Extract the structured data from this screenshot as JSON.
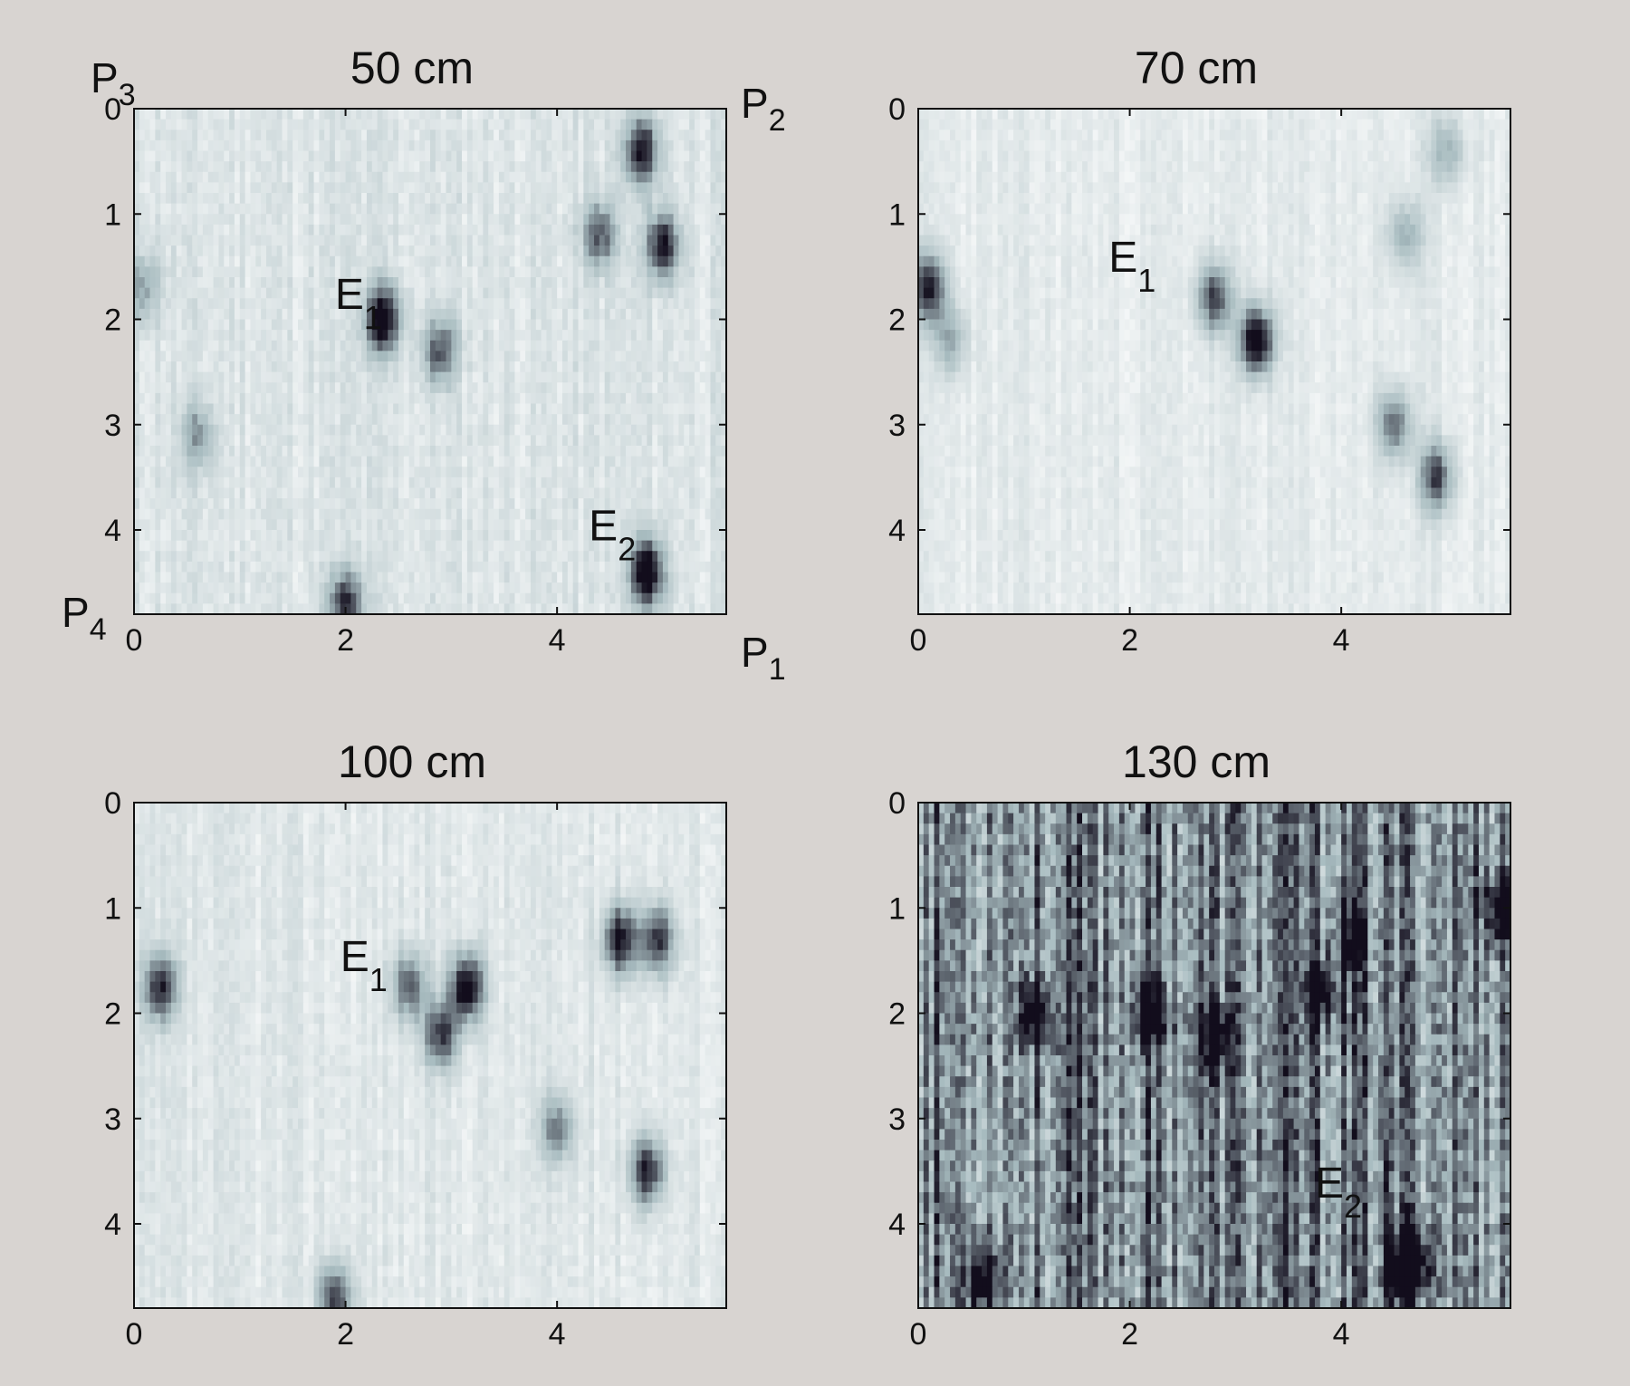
{
  "chart_data": [
    {
      "type": "heatmap",
      "title": "50 cm",
      "xlim": [
        0,
        5.6
      ],
      "ylim": [
        0,
        4.8
      ],
      "xticks": [
        "0",
        "2",
        "4"
      ],
      "yticks": [
        "0",
        "1",
        "2",
        "3",
        "4"
      ],
      "colormap": {
        "low": "#ffffff",
        "mid": "#a8bcc0",
        "high": "#120d1c"
      },
      "background": 0.14,
      "stripe_strength": 0.12,
      "seed": 11,
      "corners": [
        {
          "name": "P",
          "sub": "3",
          "position": "top-left"
        },
        {
          "name": "P",
          "sub": "2",
          "position": "top-right"
        },
        {
          "name": "P",
          "sub": "4",
          "position": "bottom-left"
        },
        {
          "name": "P",
          "sub": "1",
          "position": "bottom-right"
        }
      ],
      "anomalies": [
        {
          "x": 2.35,
          "y": 2.0,
          "intensity": 0.95
        },
        {
          "x": 2.9,
          "y": 2.3,
          "intensity": 0.6
        },
        {
          "x": 4.8,
          "y": 0.4,
          "intensity": 0.8
        },
        {
          "x": 5.0,
          "y": 1.3,
          "intensity": 0.8
        },
        {
          "x": 4.4,
          "y": 1.2,
          "intensity": 0.6
        },
        {
          "x": 4.85,
          "y": 4.4,
          "intensity": 1.0
        },
        {
          "x": 2.0,
          "y": 4.7,
          "intensity": 0.7
        },
        {
          "x": 0.6,
          "y": 3.1,
          "intensity": 0.4
        },
        {
          "x": 0.1,
          "y": 1.7,
          "intensity": 0.4
        }
      ],
      "events": [
        {
          "name": "E",
          "sub": "1",
          "x": 1.9,
          "y": 1.9
        },
        {
          "name": "E",
          "sub": "2",
          "x": 4.3,
          "y": 4.1
        }
      ]
    },
    {
      "type": "heatmap",
      "title": "70 cm",
      "xlim": [
        0,
        5.6
      ],
      "ylim": [
        0,
        4.8
      ],
      "xticks": [
        "0",
        "2",
        "4"
      ],
      "yticks": [
        "0",
        "1",
        "2",
        "3",
        "4"
      ],
      "colormap": {
        "low": "#ffffff",
        "mid": "#a8bcc0",
        "high": "#120d1c"
      },
      "background": 0.1,
      "stripe_strength": 0.1,
      "seed": 23,
      "corners": [],
      "anomalies": [
        {
          "x": 3.2,
          "y": 2.2,
          "intensity": 1.0
        },
        {
          "x": 2.8,
          "y": 1.8,
          "intensity": 0.7
        },
        {
          "x": 0.1,
          "y": 1.7,
          "intensity": 0.8
        },
        {
          "x": 0.3,
          "y": 2.2,
          "intensity": 0.4
        },
        {
          "x": 4.9,
          "y": 3.5,
          "intensity": 0.7
        },
        {
          "x": 4.5,
          "y": 3.0,
          "intensity": 0.6
        },
        {
          "x": 5.0,
          "y": 0.4,
          "intensity": 0.4
        },
        {
          "x": 4.6,
          "y": 1.2,
          "intensity": 0.4
        }
      ],
      "events": [
        {
          "name": "E",
          "sub": "1",
          "x": 1.8,
          "y": 1.55
        }
      ]
    },
    {
      "type": "heatmap",
      "title": "100 cm",
      "xlim": [
        0,
        5.6
      ],
      "ylim": [
        0,
        4.8
      ],
      "xticks": [
        "0",
        "2",
        "4"
      ],
      "yticks": [
        "0",
        "1",
        "2",
        "3",
        "4"
      ],
      "colormap": {
        "low": "#ffffff",
        "mid": "#a8bcc0",
        "high": "#120d1c"
      },
      "background": 0.12,
      "stripe_strength": 0.11,
      "seed": 37,
      "corners": [],
      "anomalies": [
        {
          "x": 3.15,
          "y": 1.75,
          "intensity": 0.95
        },
        {
          "x": 2.9,
          "y": 2.2,
          "intensity": 0.7
        },
        {
          "x": 2.6,
          "y": 1.75,
          "intensity": 0.6
        },
        {
          "x": 4.6,
          "y": 1.3,
          "intensity": 0.85
        },
        {
          "x": 4.95,
          "y": 1.3,
          "intensity": 0.75
        },
        {
          "x": 0.25,
          "y": 1.75,
          "intensity": 0.75
        },
        {
          "x": 4.85,
          "y": 3.5,
          "intensity": 0.8
        },
        {
          "x": 4.0,
          "y": 3.1,
          "intensity": 0.5
        },
        {
          "x": 1.9,
          "y": 4.7,
          "intensity": 0.7
        }
      ],
      "events": [
        {
          "name": "E",
          "sub": "1",
          "x": 1.95,
          "y": 1.6
        }
      ]
    },
    {
      "type": "heatmap",
      "title": "130 cm",
      "xlim": [
        0,
        5.6
      ],
      "ylim": [
        0,
        4.8
      ],
      "xticks": [
        "0",
        "2",
        "4"
      ],
      "yticks": [
        "0",
        "1",
        "2",
        "3",
        "4"
      ],
      "colormap": {
        "low": "#ffffff",
        "mid": "#a8bcc0",
        "high": "#120d1c"
      },
      "background": 0.42,
      "stripe_strength": 0.45,
      "seed": 53,
      "corners": [],
      "anomalies": [
        {
          "x": 4.65,
          "y": 4.4,
          "intensity": 1.0
        },
        {
          "x": 1.1,
          "y": 2.0,
          "intensity": 0.6
        },
        {
          "x": 2.2,
          "y": 2.0,
          "intensity": 0.6
        },
        {
          "x": 2.8,
          "y": 2.2,
          "intensity": 0.6
        },
        {
          "x": 3.8,
          "y": 1.8,
          "intensity": 0.5
        },
        {
          "x": 4.1,
          "y": 1.3,
          "intensity": 0.5
        },
        {
          "x": 5.5,
          "y": 1.0,
          "intensity": 0.6
        },
        {
          "x": 0.6,
          "y": 4.5,
          "intensity": 0.6
        }
      ],
      "events": [
        {
          "name": "E",
          "sub": "2",
          "x": 3.75,
          "y": 3.75
        }
      ]
    }
  ]
}
